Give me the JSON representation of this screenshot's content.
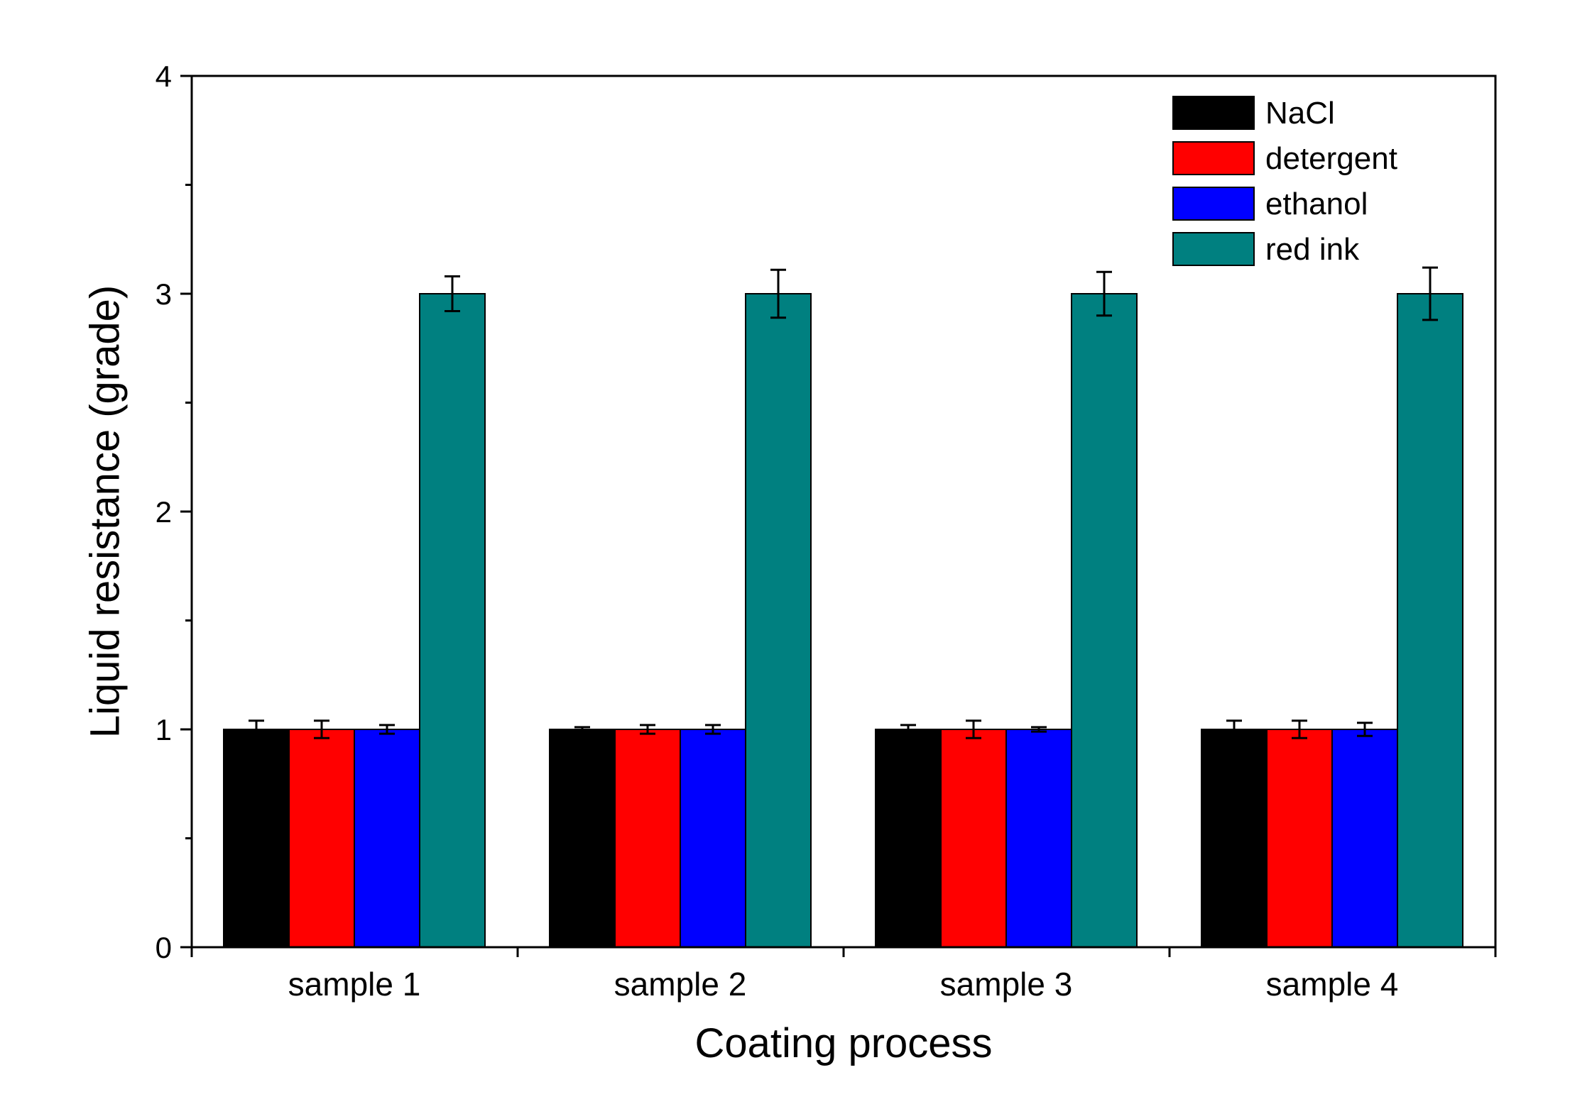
{
  "chart_data": {
    "type": "bar",
    "title": "",
    "xlabel": "Coating process",
    "ylabel": "Liquid resistance (grade)",
    "ylim": [
      0,
      4
    ],
    "yticks": [
      "0",
      "1",
      "2",
      "3",
      "4"
    ],
    "grid": false,
    "legend_position": "top-right",
    "categories": [
      "sample 1",
      "sample 2",
      "sample 3",
      "sample 4"
    ],
    "series": [
      {
        "name": "NaCl",
        "color": "#000000",
        "values": [
          1,
          1,
          1,
          1
        ],
        "errors": [
          0.04,
          0.01,
          0.02,
          0.04
        ]
      },
      {
        "name": "detergent",
        "color": "#ff0000",
        "values": [
          1,
          1,
          1,
          1
        ],
        "errors": [
          0.04,
          0.02,
          0.04,
          0.04
        ]
      },
      {
        "name": "ethanol",
        "color": "#0000ff",
        "values": [
          1,
          1,
          1,
          1
        ],
        "errors": [
          0.02,
          0.02,
          0.01,
          0.03
        ]
      },
      {
        "name": "red ink",
        "color": "#008080",
        "values": [
          3,
          3,
          3,
          3
        ],
        "errors": [
          0.08,
          0.11,
          0.1,
          0.12
        ]
      }
    ]
  }
}
